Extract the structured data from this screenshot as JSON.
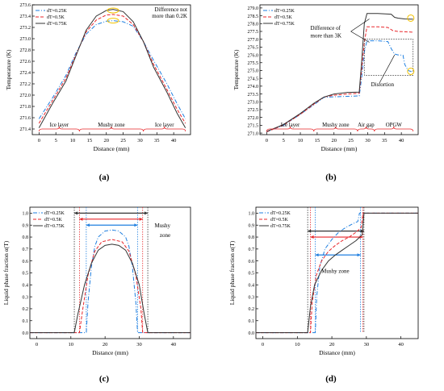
{
  "colors": {
    "dT025": "#1f7fe0",
    "dT05": "#e8262a",
    "dT075": "#333333",
    "highlight": "#f2c200",
    "axis": "#000000"
  },
  "panel_labels": [
    "(a)",
    "(b)",
    "(c)",
    "(d)"
  ],
  "chart_data": [
    {
      "id": "a",
      "type": "line",
      "title": "",
      "xlabel": "Distance (mm)",
      "ylabel": "Temperature (K)",
      "xlim": [
        -2,
        45
      ],
      "ylim": [
        271.3,
        273.6
      ],
      "xticks": [
        "0",
        "5",
        "10",
        "15",
        "20",
        "25",
        "30",
        "35",
        "40"
      ],
      "yticks": [
        "271.4",
        "271.6",
        "271.8",
        "272.0",
        "272.2",
        "272.4",
        "272.6",
        "272.8",
        "273.0",
        "273.2",
        "273.4",
        "273.6"
      ],
      "legend": [
        "dT=0.25K",
        "dT=0.5K",
        "dT=0.75K"
      ],
      "legend_position": "top-left",
      "series": [
        {
          "name": "dT=0.25K",
          "style": "dashdot",
          "x": [
            0,
            4,
            8,
            11,
            14,
            17,
            20,
            22,
            25,
            28,
            31,
            34,
            38,
            41,
            43.5
          ],
          "y": [
            271.58,
            271.95,
            272.35,
            272.75,
            273.08,
            273.25,
            273.31,
            273.32,
            273.3,
            273.22,
            272.95,
            272.62,
            272.2,
            271.85,
            271.58
          ]
        },
        {
          "name": "dT=0.5K",
          "style": "dash",
          "x": [
            0,
            4,
            8,
            11,
            14,
            17,
            20,
            22,
            25,
            28,
            31,
            34,
            38,
            41,
            43.5
          ],
          "y": [
            271.5,
            271.9,
            272.3,
            272.72,
            273.12,
            273.33,
            273.42,
            273.43,
            273.4,
            273.25,
            272.95,
            272.55,
            272.1,
            271.75,
            271.5
          ]
        },
        {
          "name": "dT=0.75K",
          "style": "solid",
          "x": [
            0,
            4,
            8,
            11,
            14,
            17,
            20,
            22,
            25,
            28,
            31,
            34,
            38,
            41,
            43.5
          ],
          "y": [
            271.42,
            271.85,
            272.25,
            272.7,
            273.15,
            273.4,
            273.5,
            273.52,
            273.48,
            273.3,
            272.95,
            272.5,
            272.05,
            271.68,
            271.42
          ]
        }
      ],
      "regions": [
        {
          "label": "Ice layer",
          "from": 0,
          "to": 12
        },
        {
          "label": "Mushy zone",
          "from": 12,
          "to": 31
        },
        {
          "label": "Ice layer",
          "from": 31,
          "to": 43.5
        }
      ],
      "annotations": [
        {
          "text": "Difference not",
          "text2": "more than 0.2K",
          "x": 22,
          "y": 273.42
        }
      ]
    },
    {
      "id": "b",
      "type": "line",
      "title": "",
      "xlabel": "Distance (mm)",
      "ylabel": "Temperature (K)",
      "xlim": [
        -2,
        45
      ],
      "ylim": [
        270.9,
        279.2
      ],
      "xticks": [
        "0",
        "5",
        "10",
        "15",
        "20",
        "25",
        "30",
        "35",
        "40"
      ],
      "yticks": [
        "271.0",
        "271.5",
        "272.0",
        "272.5",
        "273.0",
        "273.5",
        "274.0",
        "274.5",
        "275.0",
        "275.5",
        "276.0",
        "276.5",
        "277.0",
        "277.5",
        "278.0",
        "278.5",
        "279.0"
      ],
      "legend": [
        "dT=0.25K",
        "dT=0.5K",
        "dT=0.75K"
      ],
      "legend_position": "top-left",
      "series": [
        {
          "name": "dT=0.25K",
          "style": "dashdot",
          "x": [
            0,
            5,
            10,
            14,
            17,
            20,
            24,
            27.5,
            28.2,
            29,
            29.8,
            33,
            36,
            37,
            38,
            39,
            40.5,
            41,
            42,
            43.5
          ],
          "y": [
            271.08,
            271.5,
            272.2,
            272.8,
            273.28,
            273.32,
            273.35,
            273.38,
            274.5,
            276.2,
            276.9,
            276.9,
            276.85,
            276.4,
            276.05,
            276.0,
            275.98,
            275.4,
            275.0,
            274.9
          ]
        },
        {
          "name": "dT=0.5K",
          "style": "dash",
          "x": [
            0,
            5,
            10,
            14,
            17,
            20,
            24,
            27.5,
            28.2,
            29,
            29.8,
            33,
            36,
            37.5,
            39,
            41,
            43.5
          ],
          "y": [
            271.08,
            271.52,
            272.2,
            272.85,
            273.3,
            273.42,
            273.5,
            273.55,
            275.0,
            276.8,
            277.8,
            277.8,
            277.75,
            277.55,
            277.5,
            277.48,
            277.45
          ]
        },
        {
          "name": "dT=0.75K",
          "style": "solid",
          "x": [
            0,
            5,
            10,
            14,
            17,
            20,
            24,
            27.5,
            28.2,
            29,
            29.8,
            33,
            37,
            38,
            39,
            41,
            43.5
          ],
          "y": [
            271.1,
            271.55,
            272.25,
            272.9,
            273.3,
            273.5,
            273.6,
            273.62,
            275.5,
            278.0,
            278.65,
            278.65,
            278.6,
            278.4,
            278.35,
            278.3,
            278.28
          ]
        }
      ],
      "regions": [
        {
          "label": "Ice layer",
          "from": 0,
          "to": 14
        },
        {
          "label": "Mushy zone",
          "from": 14,
          "to": 27
        },
        {
          "label": "Air gap",
          "from": 27,
          "to": 32
        },
        {
          "label": "OPGW",
          "from": 32,
          "to": 43.5
        }
      ],
      "annotations": [
        {
          "text": "Difference of",
          "text2": "more than 3K"
        },
        {
          "text": "Distortion"
        }
      ]
    },
    {
      "id": "c",
      "type": "line",
      "title": "",
      "xlabel": "Distance (mm)",
      "ylabel": "Liquid phase fraction α(T)",
      "xlim": [
        -2,
        45
      ],
      "ylim": [
        -0.05,
        1.05
      ],
      "xticks": [
        "0",
        "10",
        "20",
        "30",
        "40"
      ],
      "yticks": [
        "0.0",
        "0.1",
        "0.2",
        "0.3",
        "0.4",
        "0.5",
        "0.6",
        "0.7",
        "0.8",
        "0.9",
        "1.0"
      ],
      "legend": [
        "dT=0.25K",
        "dT=0.5K",
        "dT=0.75K"
      ],
      "legend_position": "top-left",
      "series": [
        {
          "name": "dT=0.25K",
          "style": "dashdot",
          "x": [
            -2,
            14.5,
            15,
            16,
            17,
            18,
            20,
            22,
            24,
            26,
            27,
            28,
            29,
            29.5,
            45
          ],
          "y": [
            0,
            0,
            0.25,
            0.55,
            0.72,
            0.8,
            0.85,
            0.86,
            0.85,
            0.8,
            0.72,
            0.55,
            0.25,
            0,
            0
          ]
        },
        {
          "name": "dT=0.5K",
          "style": "dash",
          "x": [
            -2,
            12.5,
            13.5,
            15,
            17,
            19,
            22,
            25,
            27,
            29,
            30.5,
            31,
            45
          ],
          "y": [
            0,
            0,
            0.2,
            0.48,
            0.68,
            0.76,
            0.78,
            0.76,
            0.68,
            0.48,
            0.2,
            0,
            0
          ]
        },
        {
          "name": "dT=0.75K",
          "style": "solid",
          "x": [
            -2,
            11,
            12,
            14,
            16,
            18,
            20,
            22,
            24,
            26,
            28,
            30,
            31.5,
            32.5,
            45
          ],
          "y": [
            0,
            0,
            0.15,
            0.4,
            0.58,
            0.69,
            0.73,
            0.74,
            0.73,
            0.69,
            0.58,
            0.4,
            0.15,
            0,
            0
          ]
        }
      ],
      "regions": [],
      "annotations": [
        {
          "text": "Mushy",
          "text2": "zone"
        }
      ]
    },
    {
      "id": "d",
      "type": "line",
      "title": "",
      "xlabel": "Distance (mm)",
      "ylabel": "Liquid phase fraction α(T)",
      "xlim": [
        -2,
        45
      ],
      "ylim": [
        -0.05,
        1.05
      ],
      "xticks": [
        "0",
        "10",
        "20",
        "30",
        "40"
      ],
      "yticks": [
        "0.0",
        "0.1",
        "0.2",
        "0.3",
        "0.4",
        "0.5",
        "0.6",
        "0.7",
        "0.8",
        "0.9",
        "1.0"
      ],
      "legend": [
        "dT=0.25K",
        "dT=0.5K",
        "dT=0.75K"
      ],
      "legend_position": "top-left",
      "series": [
        {
          "name": "dT=0.25K",
          "style": "dashdot",
          "x": [
            -2,
            15.2,
            15.6,
            16.5,
            18,
            20,
            22,
            24,
            26,
            27.5,
            28,
            28.3,
            45
          ],
          "y": [
            0,
            0,
            0.3,
            0.55,
            0.7,
            0.78,
            0.84,
            0.88,
            0.91,
            0.93,
            1.0,
            1.0,
            1.0
          ]
        },
        {
          "name": "dT=0.5K",
          "style": "dash",
          "x": [
            -2,
            13.8,
            14.3,
            15.5,
            17,
            19,
            21,
            23,
            25,
            27,
            28.5,
            29,
            45
          ],
          "y": [
            0,
            0,
            0.25,
            0.48,
            0.6,
            0.68,
            0.73,
            0.77,
            0.8,
            0.84,
            0.88,
            1.0,
            1.0
          ]
        },
        {
          "name": "dT=0.75K",
          "style": "solid",
          "x": [
            -2,
            13,
            13.8,
            15,
            17,
            19,
            21,
            23,
            25,
            27,
            28.8,
            29.3,
            45
          ],
          "y": [
            0,
            0,
            0.22,
            0.4,
            0.52,
            0.6,
            0.65,
            0.69,
            0.73,
            0.77,
            0.82,
            1.0,
            1.0
          ]
        }
      ],
      "regions": [],
      "annotations": [
        {
          "text": "Mushy zone"
        }
      ]
    }
  ]
}
